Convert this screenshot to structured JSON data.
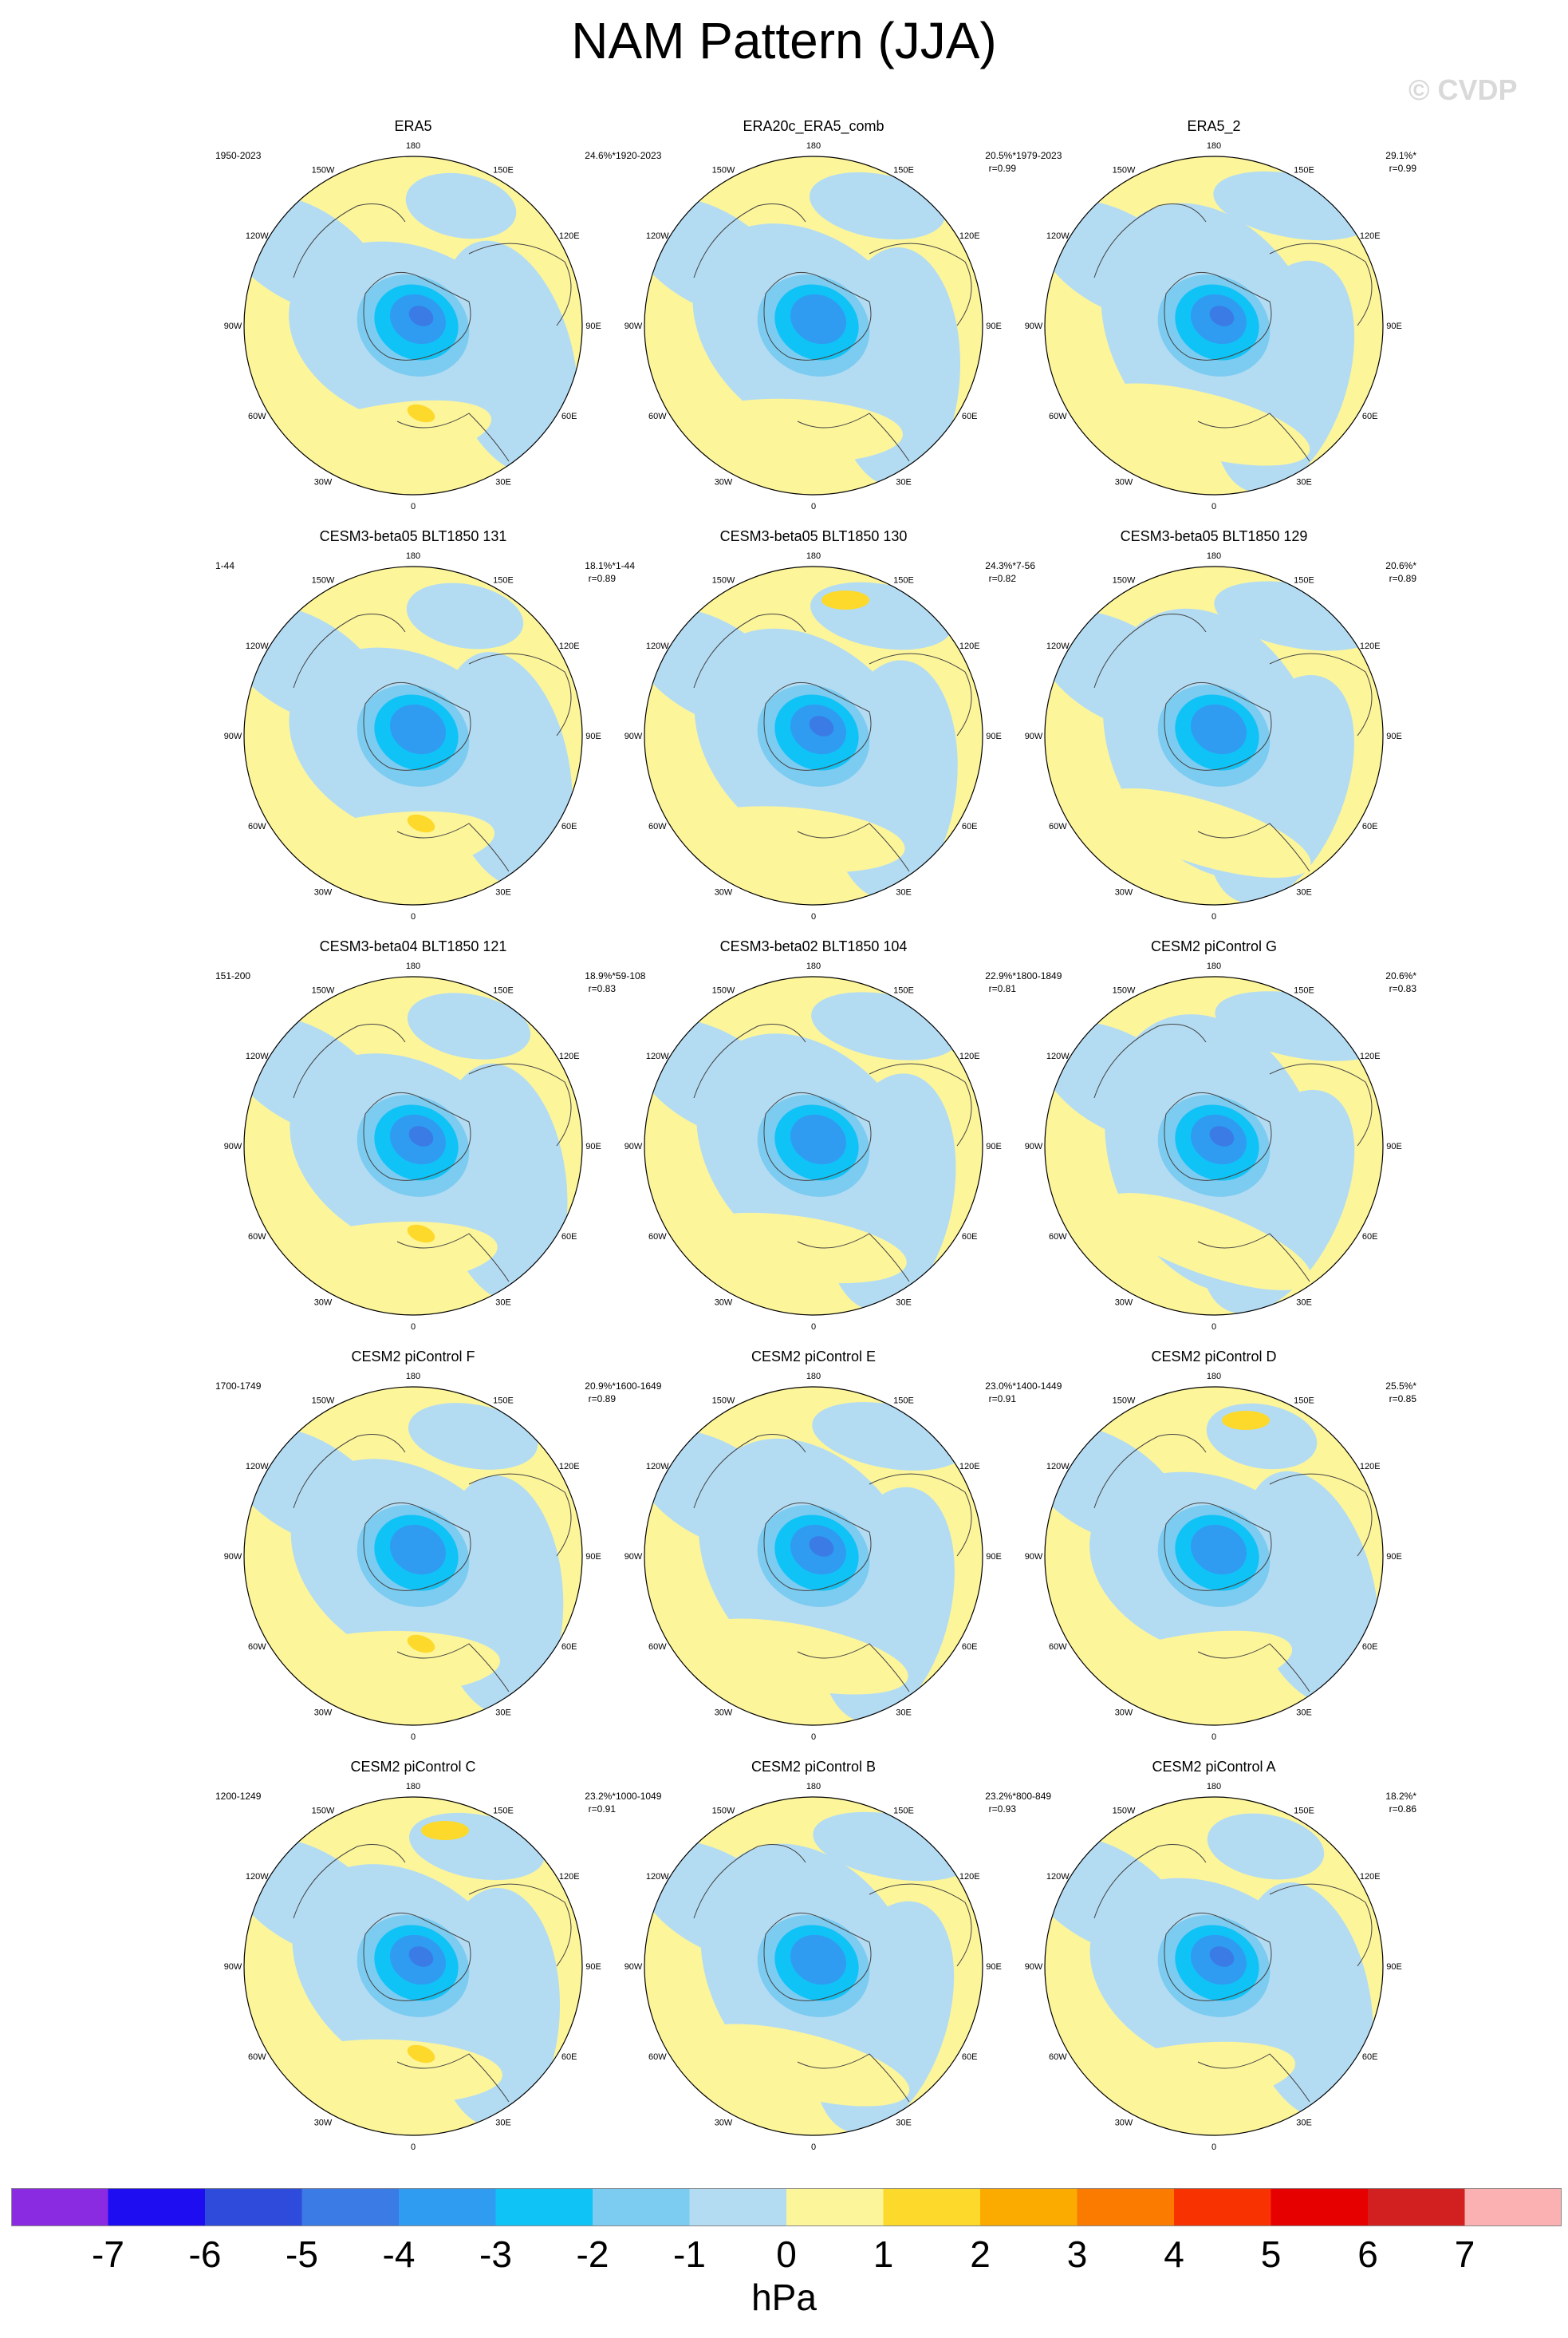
{
  "title": "NAM Pattern (JJA)",
  "watermark": "© CVDP",
  "lon_labels": [
    "180",
    "150E",
    "120E",
    "90E",
    "60E",
    "30E",
    "0",
    "30W",
    "60W",
    "90W",
    "120W",
    "150W"
  ],
  "colors": {
    "land_outline": "#444444",
    "fill_positive_1": "#fdf59a",
    "fill_negative_1": "#b3dcf3"
  },
  "chart_data": {
    "type": "heatmap",
    "projection": "north polar stereographic",
    "units": "hPa",
    "panels": [
      {
        "title": "ERA5",
        "years": "1950-2023",
        "pct_variance": "24.6%*",
        "corr": ""
      },
      {
        "title": "ERA20c_ERA5_comb",
        "years": "1920-2023",
        "pct_variance": "20.5%*",
        "corr": "r=0.99"
      },
      {
        "title": "ERA5_2",
        "years": "1979-2023",
        "pct_variance": "29.1%*",
        "corr": "r=0.99"
      },
      {
        "title": "CESM3-beta05 BLT1850 131",
        "years": "1-44",
        "pct_variance": "18.1%*",
        "corr": "r=0.89"
      },
      {
        "title": "CESM3-beta05 BLT1850 130",
        "years": "1-44",
        "pct_variance": "24.3%*",
        "corr": "r=0.82"
      },
      {
        "title": "CESM3-beta05 BLT1850 129",
        "years": "7-56",
        "pct_variance": "20.6%*",
        "corr": "r=0.89"
      },
      {
        "title": "CESM3-beta04 BLT1850 121",
        "years": "151-200",
        "pct_variance": "18.9%*",
        "corr": "r=0.83"
      },
      {
        "title": "CESM3-beta02 BLT1850 104",
        "years": "59-108",
        "pct_variance": "22.9%*",
        "corr": "r=0.81"
      },
      {
        "title": "CESM2 piControl G",
        "years": "1800-1849",
        "pct_variance": "20.6%*",
        "corr": "r=0.83"
      },
      {
        "title": "CESM2 piControl F",
        "years": "1700-1749",
        "pct_variance": "20.9%*",
        "corr": "r=0.89"
      },
      {
        "title": "CESM2 piControl E",
        "years": "1600-1649",
        "pct_variance": "23.0%*",
        "corr": "r=0.91"
      },
      {
        "title": "CESM2 piControl D",
        "years": "1400-1449",
        "pct_variance": "25.5%*",
        "corr": "r=0.85"
      },
      {
        "title": "CESM2 piControl C",
        "years": "1200-1249",
        "pct_variance": "23.2%*",
        "corr": "r=0.91"
      },
      {
        "title": "CESM2 piControl B",
        "years": "1000-1049",
        "pct_variance": "23.2%*",
        "corr": "r=0.93"
      },
      {
        "title": "CESM2 piControl A",
        "years": "800-849",
        "pct_variance": "18.2%*",
        "corr": "r=0.86"
      }
    ],
    "colorbar": {
      "label": "hPa",
      "ticks": [
        "-7",
        "-6",
        "-5",
        "-4",
        "-3",
        "-2",
        "-1",
        "0",
        "1",
        "2",
        "3",
        "4",
        "5",
        "6",
        "7"
      ],
      "colors": [
        "#8a2be2",
        "#1e0df0",
        "#2f4bdc",
        "#3a7be6",
        "#2f9cf2",
        "#10c3f6",
        "#7ccbf0",
        "#b3dcf3",
        "#fdf59a",
        "#fcd92a",
        "#fbab00",
        "#fb7a00",
        "#f83200",
        "#e60000",
        "#d21f20",
        "#fbb1b1"
      ]
    }
  }
}
